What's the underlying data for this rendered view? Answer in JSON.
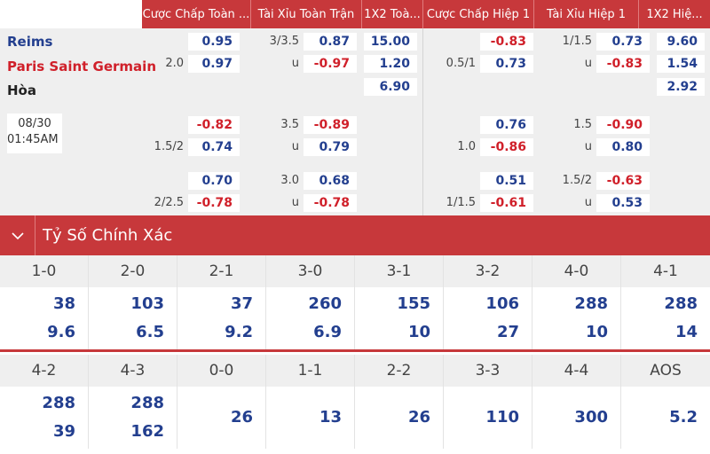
{
  "header": {
    "columns": [
      "Cược Chấp Toàn ...",
      "Tài Xỉu Toàn Trận",
      "1X2 Toà...",
      "Cược Chấp Hiệp 1",
      "Tài Xỉu Hiệp 1",
      "1X2 Hiệ..."
    ]
  },
  "match": {
    "home": "Reims",
    "away": "Paris Saint Germain",
    "draw": "Hòa",
    "date": "08/30",
    "time": "01:45AM"
  },
  "odds": {
    "r1": {
      "ft_hdp_line": "2.0",
      "ft_hdp_home": "0.95",
      "ft_hdp_away": "0.97",
      "ft_ou_line": "3/3.5",
      "ft_ou_u": "u",
      "ft_ou_over": "0.87",
      "ft_ou_under": "-0.97",
      "ft_1x2_home": "15.00",
      "ft_1x2_away": "1.20",
      "ft_1x2_draw": "6.90",
      "h1_hdp_line": "0.5/1",
      "h1_hdp_home": "-0.83",
      "h1_hdp_away": "0.73",
      "h1_ou_line": "1/1.5",
      "h1_ou_u": "u",
      "h1_ou_over": "0.73",
      "h1_ou_under": "-0.83",
      "h1_1x2_home": "9.60",
      "h1_1x2_away": "1.54",
      "h1_1x2_draw": "2.92"
    },
    "r2": {
      "ft_hdp_line": "1.5/2",
      "ft_hdp_home": "-0.82",
      "ft_hdp_away": "0.74",
      "ft_ou_line": "3.5",
      "ft_ou_u": "u",
      "ft_ou_over": "-0.89",
      "ft_ou_under": "0.79",
      "h1_hdp_line": "1.0",
      "h1_hdp_home": "0.76",
      "h1_hdp_away": "-0.86",
      "h1_ou_line": "1.5",
      "h1_ou_u": "u",
      "h1_ou_over": "-0.90",
      "h1_ou_under": "0.80"
    },
    "r3": {
      "ft_hdp_line": "2/2.5",
      "ft_hdp_home": "0.70",
      "ft_hdp_away": "-0.78",
      "ft_ou_line": "3.0",
      "ft_ou_u": "u",
      "ft_ou_over": "0.68",
      "ft_ou_under": "-0.78",
      "h1_hdp_line": "1/1.5",
      "h1_hdp_home": "0.51",
      "h1_hdp_away": "-0.61",
      "h1_ou_line": "1.5/2",
      "h1_ou_u": "u",
      "h1_ou_over": "-0.63",
      "h1_ou_under": "0.53"
    }
  },
  "correct_score": {
    "title": "Tỷ Số Chính Xác",
    "icon": "chevron-down-icon",
    "row1": [
      {
        "score": "1-0",
        "home": "38",
        "away": "9.6"
      },
      {
        "score": "2-0",
        "home": "103",
        "away": "6.5"
      },
      {
        "score": "2-1",
        "home": "37",
        "away": "9.2"
      },
      {
        "score": "3-0",
        "home": "260",
        "away": "6.9"
      },
      {
        "score": "3-1",
        "home": "155",
        "away": "10"
      },
      {
        "score": "3-2",
        "home": "106",
        "away": "27"
      },
      {
        "score": "4-0",
        "home": "288",
        "away": "10"
      },
      {
        "score": "4-1",
        "home": "288",
        "away": "14"
      }
    ],
    "row2": [
      {
        "score": "4-2",
        "home": "288",
        "away": "39"
      },
      {
        "score": "4-3",
        "home": "288",
        "away": "162"
      },
      {
        "score": "0-0",
        "single": "26"
      },
      {
        "score": "1-1",
        "single": "13"
      },
      {
        "score": "2-2",
        "single": "26"
      },
      {
        "score": "3-3",
        "single": "110"
      },
      {
        "score": "4-4",
        "single": "300"
      },
      {
        "score": "AOS",
        "single": "5.2"
      }
    ]
  },
  "colors": {
    "accent": "#c7383b",
    "positive": "#233f8f",
    "negative": "#d0202a",
    "panel": "#efefef"
  }
}
